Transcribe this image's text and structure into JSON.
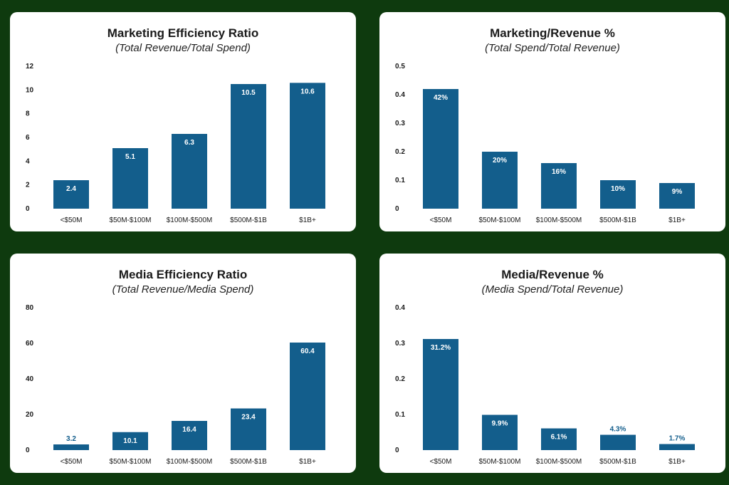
{
  "chart_data": [
    {
      "type": "bar",
      "title": "Marketing Efficiency Ratio",
      "subtitle": "(Total Revenue/Total Spend)",
      "categories": [
        "<$50M",
        "$50M-$100M",
        "$100M-$500M",
        "$500M-$1B",
        "$1B+"
      ],
      "values": [
        2.4,
        5.1,
        6.3,
        10.5,
        10.6
      ],
      "data_labels": [
        "2.4",
        "5.1",
        "6.3",
        "10.5",
        "10.6"
      ],
      "ylim": [
        0,
        12
      ],
      "yticks": [
        "0",
        "2",
        "4",
        "6",
        "8",
        "10",
        "12"
      ],
      "bar_color": "#135e8c",
      "grid": false,
      "xlabel": "",
      "ylabel": ""
    },
    {
      "type": "bar",
      "title": "Marketing/Revenue %",
      "subtitle": "(Total Spend/Total Revenue)",
      "categories": [
        "<$50M",
        "$50M-$100M",
        "$100M-$500M",
        "$500M-$1B",
        "$1B+"
      ],
      "values": [
        0.42,
        0.2,
        0.16,
        0.1,
        0.09
      ],
      "data_labels": [
        "42%",
        "20%",
        "16%",
        "10%",
        "9%"
      ],
      "ylim": [
        0,
        0.5
      ],
      "yticks": [
        "0",
        "0.1",
        "0.2",
        "0.3",
        "0.4",
        "0.5"
      ],
      "bar_color": "#135e8c",
      "grid": false,
      "xlabel": "",
      "ylabel": ""
    },
    {
      "type": "bar",
      "title": "Media Efficiency Ratio",
      "subtitle": "(Total Revenue/Media Spend)",
      "categories": [
        "<$50M",
        "$50M-$100M",
        "$100M-$500M",
        "$500M-$1B",
        "$1B+"
      ],
      "values": [
        3.2,
        10.1,
        16.4,
        23.4,
        60.4
      ],
      "data_labels": [
        "3.2",
        "10.1",
        "16.4",
        "23.4",
        "60.4"
      ],
      "ylim": [
        0,
        80
      ],
      "yticks": [
        "0",
        "20",
        "40",
        "60",
        "80"
      ],
      "bar_color": "#135e8c",
      "grid": false,
      "xlabel": "",
      "ylabel": ""
    },
    {
      "type": "bar",
      "title": "Media/Revenue %",
      "subtitle": "(Media Spend/Total Revenue)",
      "categories": [
        "<$50M",
        "$50M-$100M",
        "$100M-$500M",
        "$500M-$1B",
        "$1B+"
      ],
      "values": [
        0.312,
        0.099,
        0.061,
        0.043,
        0.017
      ],
      "data_labels": [
        "31.2%",
        "9.9%",
        "6.1%",
        "4.3%",
        "1.7%"
      ],
      "ylim": [
        0,
        0.4
      ],
      "yticks": [
        "0",
        "0.1",
        "0.2",
        "0.3",
        "0.4"
      ],
      "bar_color": "#135e8c",
      "grid": false,
      "xlabel": "",
      "ylabel": ""
    }
  ]
}
